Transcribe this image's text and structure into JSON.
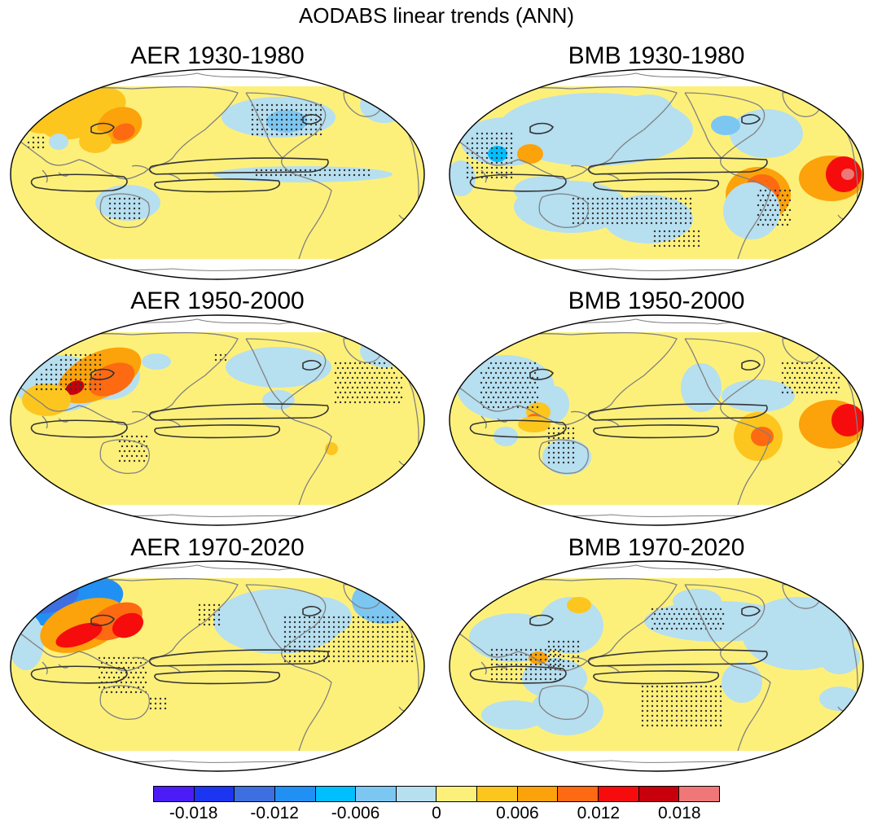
{
  "title": "AODABS linear trends (ANN)",
  "panels": [
    {
      "label": "AER 1930-1980"
    },
    {
      "label": "BMB 1930-1980"
    },
    {
      "label": "AER 1950-2000"
    },
    {
      "label": "BMB 1950-2000"
    },
    {
      "label": "AER 1970-2020"
    },
    {
      "label": "BMB 1970-2020"
    }
  ],
  "colorbar": {
    "colors": [
      "#4b1cf5",
      "#1b35f0",
      "#3e6fe0",
      "#2090f5",
      "#00bfff",
      "#7cc6f2",
      "#b6dff0",
      "#fdf07a",
      "#fcc61f",
      "#fca20a",
      "#fd6a12",
      "#f60c0c",
      "#c8000c",
      "#ef7777"
    ],
    "tick_labels": [
      "-0.018",
      "-0.012",
      "-0.006",
      "0",
      "0.006",
      "0.012",
      "0.018"
    ]
  },
  "map_colors": {
    "background": "#fdf07a",
    "missing": "#ffffff",
    "coast": "#808080",
    "contour": "#333333"
  }
}
